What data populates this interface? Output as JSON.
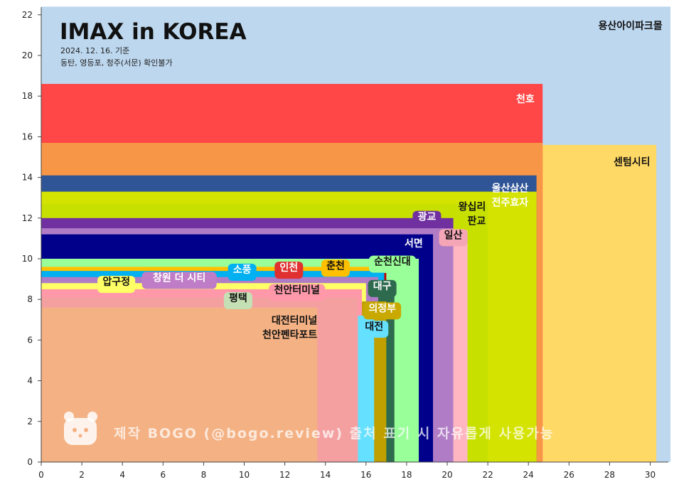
{
  "chart_data": {
    "type": "bar",
    "title": "IMAX in KOREA",
    "subtitle_lines": [
      "2024. 12. 16. 기준",
      "동탄, 영등포, 청주(서문) 확인불가"
    ],
    "watermark": "제작  BOGO (@bogo.review) 출처 표기 시 자유롭게 사용가능",
    "xlim": [
      0,
      31
    ],
    "ylim": [
      0,
      22.4
    ],
    "x_ticks": [
      0,
      2,
      4,
      6,
      8,
      10,
      12,
      14,
      16,
      18,
      20,
      22,
      24,
      26,
      28,
      30
    ],
    "y_ticks": [
      0,
      2,
      4,
      6,
      8,
      10,
      12,
      14,
      16,
      18,
      20,
      22
    ],
    "grid": false,
    "legend": "none",
    "series": [
      {
        "name": "용산아이파크몰",
        "width": 31.0,
        "height": 22.4,
        "color": "#bdd7ee",
        "label_x": 30.6,
        "label_y": 21.3,
        "label_anchor": "end",
        "label_color": "#111111",
        "label_bg": ""
      },
      {
        "name": "센텀시티",
        "width": 30.3,
        "height": 15.6,
        "color": "#ffd966",
        "label_x": 30.0,
        "label_y": 14.6,
        "label_anchor": "end",
        "label_color": "#111111",
        "label_bg": ""
      },
      {
        "name": "천호",
        "width": 24.7,
        "height": 18.6,
        "color": "#ff4747",
        "label_x": 24.3,
        "label_y": 17.7,
        "label_anchor": "end",
        "label_color": "#ffffff",
        "label_bg": ""
      },
      {
        "name": "",
        "width": 24.7,
        "height": 15.7,
        "color": "#f79646",
        "label_x": null,
        "label_y": null,
        "label_anchor": "end",
        "label_color": "#ffffff",
        "label_bg": ""
      },
      {
        "name": "울산삼산",
        "name2": "전주효자",
        "width": 24.4,
        "height": 14.1,
        "color": "#2f5597",
        "label_x": 24.0,
        "label_y": 13.3,
        "label_anchor": "end",
        "label_color": "#ffffff",
        "label_bg": ""
      },
      {
        "name": "",
        "width": 24.4,
        "height": 13.3,
        "color": "#d4e300",
        "label_x": null,
        "label_y": null,
        "label_anchor": "end",
        "label_color": "#111111",
        "label_bg": ""
      },
      {
        "name": "왕십리",
        "name2": "판교",
        "width": 22.0,
        "height": 12.7,
        "color": "#c8e000",
        "label_x": 21.9,
        "label_y": 12.4,
        "label_anchor": "end",
        "label_color": "#111111",
        "label_bg": ""
      },
      {
        "name": "광교",
        "width": 20.3,
        "height": 12.0,
        "color": "#7030a0",
        "label_x": 19.0,
        "label_y": 11.9,
        "label_anchor": "middle",
        "label_color": "#ffffff",
        "label_bg": "#7030a0"
      },
      {
        "name": "일산",
        "width": 21.0,
        "height": 11.4,
        "color": "#ffb6c1",
        "label_x": 20.3,
        "label_y": 11.0,
        "label_anchor": "middle",
        "label_color": "#111111",
        "label_bg": "#f4a6b6"
      },
      {
        "name": "",
        "width": 20.3,
        "height": 11.5,
        "color": "#b07cc6",
        "label_x": null,
        "label_y": null,
        "label_anchor": "end",
        "label_color": "#111111",
        "label_bg": ""
      },
      {
        "name": "서면",
        "width": 19.3,
        "height": 11.2,
        "color": "#00008b",
        "label_x": 18.8,
        "label_y": 10.6,
        "label_anchor": "end",
        "label_color": "#ffffff",
        "label_bg": ""
      },
      {
        "name": "순천신대",
        "width": 18.6,
        "height": 10.0,
        "color": "#99ff99",
        "label_x": 17.3,
        "label_y": 9.7,
        "label_anchor": "middle",
        "label_color": "#111111",
        "label_bg": "#99ff99"
      },
      {
        "name": "춘천",
        "width": 16.6,
        "height": 9.6,
        "color": "#ffc000",
        "label_x": 14.5,
        "label_y": 9.5,
        "label_anchor": "middle",
        "label_color": "#111111",
        "label_bg": "#ffc000"
      },
      {
        "name": "인천",
        "width": 17.0,
        "height": 9.3,
        "color": "#c00000",
        "label_x": 12.2,
        "label_y": 9.4,
        "label_anchor": "middle",
        "label_color": "#ffffff",
        "label_bg": "#e03030"
      },
      {
        "name": "소풍",
        "width": 16.9,
        "height": 9.4,
        "color": "#00b0f0",
        "label_x": 9.9,
        "label_y": 9.3,
        "label_anchor": "middle",
        "label_color": "#ffffff",
        "label_bg": "#00b0f0"
      },
      {
        "name": "대구",
        "width": 17.4,
        "height": 8.9,
        "color": "#2e6b4e",
        "label_x": 16.8,
        "label_y": 8.5,
        "label_anchor": "middle",
        "label_color": "#ffffff",
        "label_bg": "#2e6b4e"
      },
      {
        "name": "창원 더 시티",
        "width": 16.6,
        "height": 9.1,
        "color": "#b07cc6",
        "label_x": 6.8,
        "label_y": 8.9,
        "label_anchor": "middle",
        "label_color": "#ffffff",
        "label_bg": "#c07dc7"
      },
      {
        "name": "압구정",
        "width": 16.0,
        "height": 8.8,
        "color": "#ffff66",
        "label_x": 3.7,
        "label_y": 8.7,
        "label_anchor": "middle",
        "label_color": "#111111",
        "label_bg": "#ffff66"
      },
      {
        "name": "의정부",
        "width": 17.0,
        "height": 7.9,
        "color": "#bfa000",
        "label_x": 16.8,
        "label_y": 7.4,
        "label_anchor": "middle",
        "label_color": "#ffffff",
        "label_bg": "#c9a800"
      },
      {
        "name": "천안터미널",
        "width": 15.8,
        "height": 8.5,
        "color": "#ff99aa",
        "label_x": 12.6,
        "label_y": 8.3,
        "label_anchor": "middle",
        "label_color": "#111111",
        "label_bg": "#ff99aa"
      },
      {
        "name": "대전",
        "width": 16.4,
        "height": 7.2,
        "color": "#66e0ff",
        "label_x": 16.4,
        "label_y": 6.5,
        "label_anchor": "middle",
        "label_color": "#111111",
        "label_bg": "#66e0ff"
      },
      {
        "name": "평택",
        "width": 14.3,
        "height": 8.0,
        "color": "#c5e0b4",
        "label_x": 9.7,
        "label_y": 7.9,
        "label_anchor": "middle",
        "label_color": "#111111",
        "label_bg": "#c5e0b4"
      },
      {
        "name": "",
        "width": 15.6,
        "height": 8.1,
        "color": "#f4a0a0",
        "label_x": null,
        "label_y": null,
        "label_anchor": "end",
        "label_color": "#111111",
        "label_bg": ""
      },
      {
        "name": "대전터미널",
        "name2": "천안펜타포트",
        "width": 13.6,
        "height": 7.6,
        "color": "#f4b183",
        "label_x": 13.6,
        "label_y": 6.8,
        "label_anchor": "end",
        "label_color": "#111111",
        "label_bg": ""
      }
    ]
  }
}
